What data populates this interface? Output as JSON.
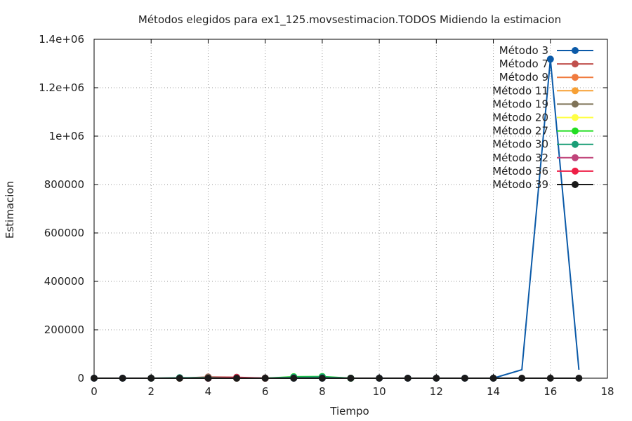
{
  "chart_data": {
    "type": "line",
    "title": "Métodos elegidos para ex1_125.movsestimacion.TODOS Midiendo la estimacion",
    "xlabel": "Tiempo",
    "ylabel": "Estimacion",
    "xlim": [
      0,
      18
    ],
    "ylim": [
      0,
      1400000
    ],
    "xticks": [
      "0",
      "2",
      "4",
      "6",
      "8",
      "10",
      "12",
      "14",
      "16",
      "18"
    ],
    "yticks": [
      "0",
      "200000",
      "400000",
      "600000",
      "800000",
      "1e+06",
      "1.2e+06",
      "1.4e+06"
    ],
    "grid": true,
    "legend_position": "top-right",
    "series": [
      {
        "name": "Método 3",
        "color": "#0b5aa8",
        "x": [
          0,
          1,
          2,
          3,
          4,
          5,
          6,
          7,
          8,
          9,
          10,
          11,
          12,
          13,
          14,
          15,
          16,
          17
        ],
        "y": [
          0,
          0,
          0,
          0,
          0,
          0,
          0,
          0,
          0,
          0,
          0,
          0,
          0,
          0,
          0,
          35000,
          1318000,
          35000
        ],
        "markers_at": [
          0,
          1,
          2,
          3,
          4,
          5,
          6,
          7,
          8,
          9,
          10,
          11,
          12,
          13,
          14,
          16
        ]
      },
      {
        "name": "Método 7",
        "color": "#c0504d",
        "x": [
          2,
          3,
          4,
          5,
          6
        ],
        "y": [
          0,
          0,
          5000,
          4000,
          0
        ]
      },
      {
        "name": "Método 9",
        "color": "#f07b3f",
        "x": [
          3,
          4,
          5
        ],
        "y": [
          0,
          3000,
          0
        ]
      },
      {
        "name": "Método 11",
        "color": "#f7a035",
        "x": [
          3,
          4,
          5
        ],
        "y": [
          0,
          2500,
          0
        ]
      },
      {
        "name": "Método 19",
        "color": "#7f7358",
        "x": [
          3,
          4,
          5
        ],
        "y": [
          0,
          4000,
          0
        ]
      },
      {
        "name": "Método 20",
        "color": "#ffff44",
        "x": [
          6,
          7,
          8,
          9
        ],
        "y": [
          0,
          3000,
          3000,
          0
        ]
      },
      {
        "name": "Método 27",
        "color": "#22dd22",
        "x": [
          6,
          7,
          8,
          9
        ],
        "y": [
          0,
          6000,
          7000,
          0
        ]
      },
      {
        "name": "Método 30",
        "color": "#1a9e77",
        "x": [
          2,
          3,
          6,
          7,
          8,
          9
        ],
        "y": [
          0,
          2000,
          0,
          4000,
          5000,
          0
        ]
      },
      {
        "name": "Método 32",
        "color": "#c0447a",
        "x": [
          4,
          5,
          6
        ],
        "y": [
          0,
          2500,
          0
        ]
      },
      {
        "name": "Método 36",
        "color": "#ee1e46",
        "x": [
          4,
          5,
          6
        ],
        "y": [
          0,
          2000,
          0
        ]
      },
      {
        "name": "Método 39",
        "color": "#1a1a1a",
        "x": [
          0,
          1,
          2,
          3,
          4,
          5,
          6,
          7,
          8,
          9,
          10,
          11,
          12,
          13,
          14,
          15,
          16,
          17
        ],
        "y": [
          0,
          0,
          0,
          0,
          0,
          0,
          0,
          0,
          0,
          0,
          0,
          0,
          0,
          0,
          0,
          0,
          0,
          0
        ]
      }
    ]
  }
}
